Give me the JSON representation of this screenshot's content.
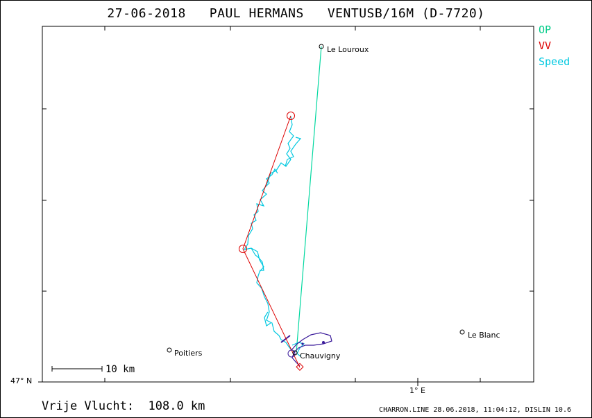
{
  "title": "27-06-2018   PAUL HERMANS   VENTUSB/16M (D-7720)",
  "legend": [
    {
      "label": "OP",
      "color": "#00cc88"
    },
    {
      "label": "VV",
      "color": "#dd0000"
    },
    {
      "label": "Speed",
      "color": "#00c8e0"
    }
  ],
  "towns": {
    "le_louroux": "Le Louroux",
    "le_blanc": "Le Blanc",
    "poitiers": "Poitiers",
    "chauvigny": "Chauvigny"
  },
  "axes": {
    "lat_label": "47° N",
    "lon_label": "1° E"
  },
  "scale_bar": "10 km",
  "footer": {
    "distance": "Vrije Vlucht:  108.0 km",
    "credit": "CHARRON.LINE 28.06.2018, 11:04:12, DISLIN 10.6"
  },
  "colors": {
    "op_line": "#00d8a0",
    "vv_line": "#dd0000",
    "speed_track": "#00c8e0",
    "track_dark": "#3a1a9a"
  }
}
